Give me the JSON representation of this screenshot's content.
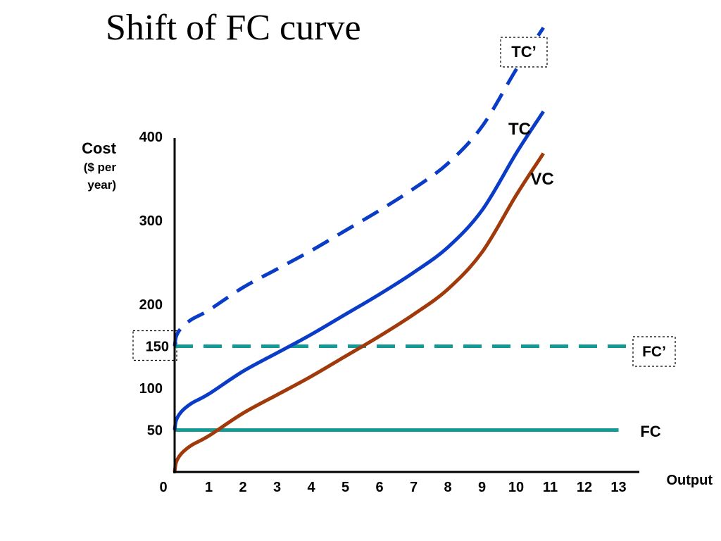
{
  "chart_data": {
    "type": "line",
    "title": "Shift of FC curve",
    "ylabel_lines": [
      "Cost",
      "($ per",
      "year)"
    ],
    "xlabel": "Output",
    "x_origin_label": "0",
    "x_ticks": [
      "1",
      "2",
      "3",
      "4",
      "5",
      "6",
      "7",
      "8",
      "9",
      "10",
      "11",
      "12",
      "13"
    ],
    "y_ticks": [
      "50",
      "100",
      "200",
      "300",
      "400"
    ],
    "y_highlight_tick": "150",
    "xlim": [
      0,
      13.5
    ],
    "series": [
      {
        "name": "FC",
        "color": "#129A94",
        "style": "solid",
        "x": [
          0,
          13
        ],
        "y": [
          50,
          50
        ]
      },
      {
        "name": "FC’",
        "color": "#129A94",
        "style": "dashed",
        "boxed": true,
        "x": [
          0,
          13.5
        ],
        "y": [
          150,
          150
        ]
      },
      {
        "name": "VC",
        "color": "#A03A0A",
        "style": "solid",
        "x": [
          0,
          0.05,
          0.2,
          0.5,
          1,
          2,
          3,
          4,
          5,
          6,
          7,
          8,
          9,
          10,
          10.8
        ],
        "y": [
          0,
          12,
          22,
          32,
          43,
          70,
          92,
          114,
          138,
          162,
          188,
          218,
          262,
          330,
          380
        ]
      },
      {
        "name": "TC",
        "color": "#0A3CC8",
        "style": "solid",
        "x": [
          0,
          0.05,
          0.2,
          0.5,
          1,
          2,
          3,
          4,
          5,
          6,
          7,
          8,
          9,
          10,
          10.8
        ],
        "y": [
          50,
          62,
          72,
          82,
          93,
          120,
          142,
          164,
          188,
          212,
          238,
          268,
          312,
          380,
          430
        ]
      },
      {
        "name": "TC’",
        "color": "#0A3CC8",
        "style": "dashed",
        "boxed": true,
        "x": [
          0,
          0.05,
          0.2,
          0.5,
          1,
          2,
          3,
          4,
          5,
          6,
          7,
          8,
          9,
          10,
          10.8
        ],
        "y": [
          150,
          162,
          172,
          182,
          193,
          220,
          242,
          264,
          288,
          312,
          338,
          368,
          412,
          480,
          530
        ]
      }
    ]
  }
}
